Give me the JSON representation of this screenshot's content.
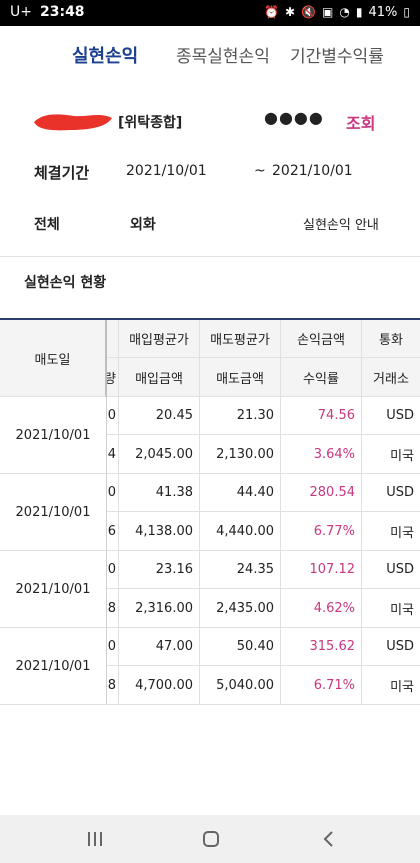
{
  "status_bar": {
    "carrier": "U+",
    "time": "23:48",
    "battery": "41%"
  },
  "tabs": [
    {
      "label": "실현손익",
      "active": true
    },
    {
      "label": "종목실현손익",
      "active": false
    },
    {
      "label": "기간별수익률",
      "active": false
    }
  ],
  "account": {
    "type_label": "[위탁종합]",
    "password_mask": "●●●●",
    "query_label": "조회"
  },
  "period": {
    "label": "체결기간",
    "from": "2021/10/01",
    "separator": "~",
    "to": "2021/10/01"
  },
  "filters": {
    "all_label": "전체",
    "fx_label": "외화",
    "guide_label": "실현손익 안내"
  },
  "section_title": "실현손익 현황",
  "table": {
    "headers": {
      "date": "매도일",
      "row1": [
        "",
        "매입평균가",
        "매도평균가",
        "손익금액",
        "통화"
      ],
      "row2": [
        "량",
        "매입금액",
        "매도금액",
        "수익률",
        "거래소"
      ]
    },
    "rows": [
      {
        "date": "2021/10/01",
        "top": [
          "0",
          "20.45",
          "21.30",
          "74.56",
          "USD"
        ],
        "bottom": [
          "4",
          "2,045.00",
          "2,130.00",
          "3.64%",
          "미국"
        ]
      },
      {
        "date": "2021/10/01",
        "top": [
          "0",
          "41.38",
          "44.40",
          "280.54",
          "USD"
        ],
        "bottom": [
          "6",
          "4,138.00",
          "4,440.00",
          "6.77%",
          "미국"
        ]
      },
      {
        "date": "2021/10/01",
        "top": [
          "0",
          "23.16",
          "24.35",
          "107.12",
          "USD"
        ],
        "bottom": [
          "8",
          "2,316.00",
          "2,435.00",
          "4.62%",
          "미국"
        ]
      },
      {
        "date": "2021/10/01",
        "top": [
          "0",
          "47.00",
          "50.40",
          "315.62",
          "USD"
        ],
        "bottom": [
          "8",
          "4,700.00",
          "5,040.00",
          "6.71%",
          "미국"
        ]
      }
    ]
  },
  "colors": {
    "active_tab": "#1c3f8f",
    "accent_pink": "#c8377f",
    "header_bg": "#f4f4f4",
    "redaction": "#e8322a"
  },
  "nav": {
    "recents_icon": "recents-icon",
    "home_icon": "home-icon",
    "back_icon": "back-icon"
  }
}
